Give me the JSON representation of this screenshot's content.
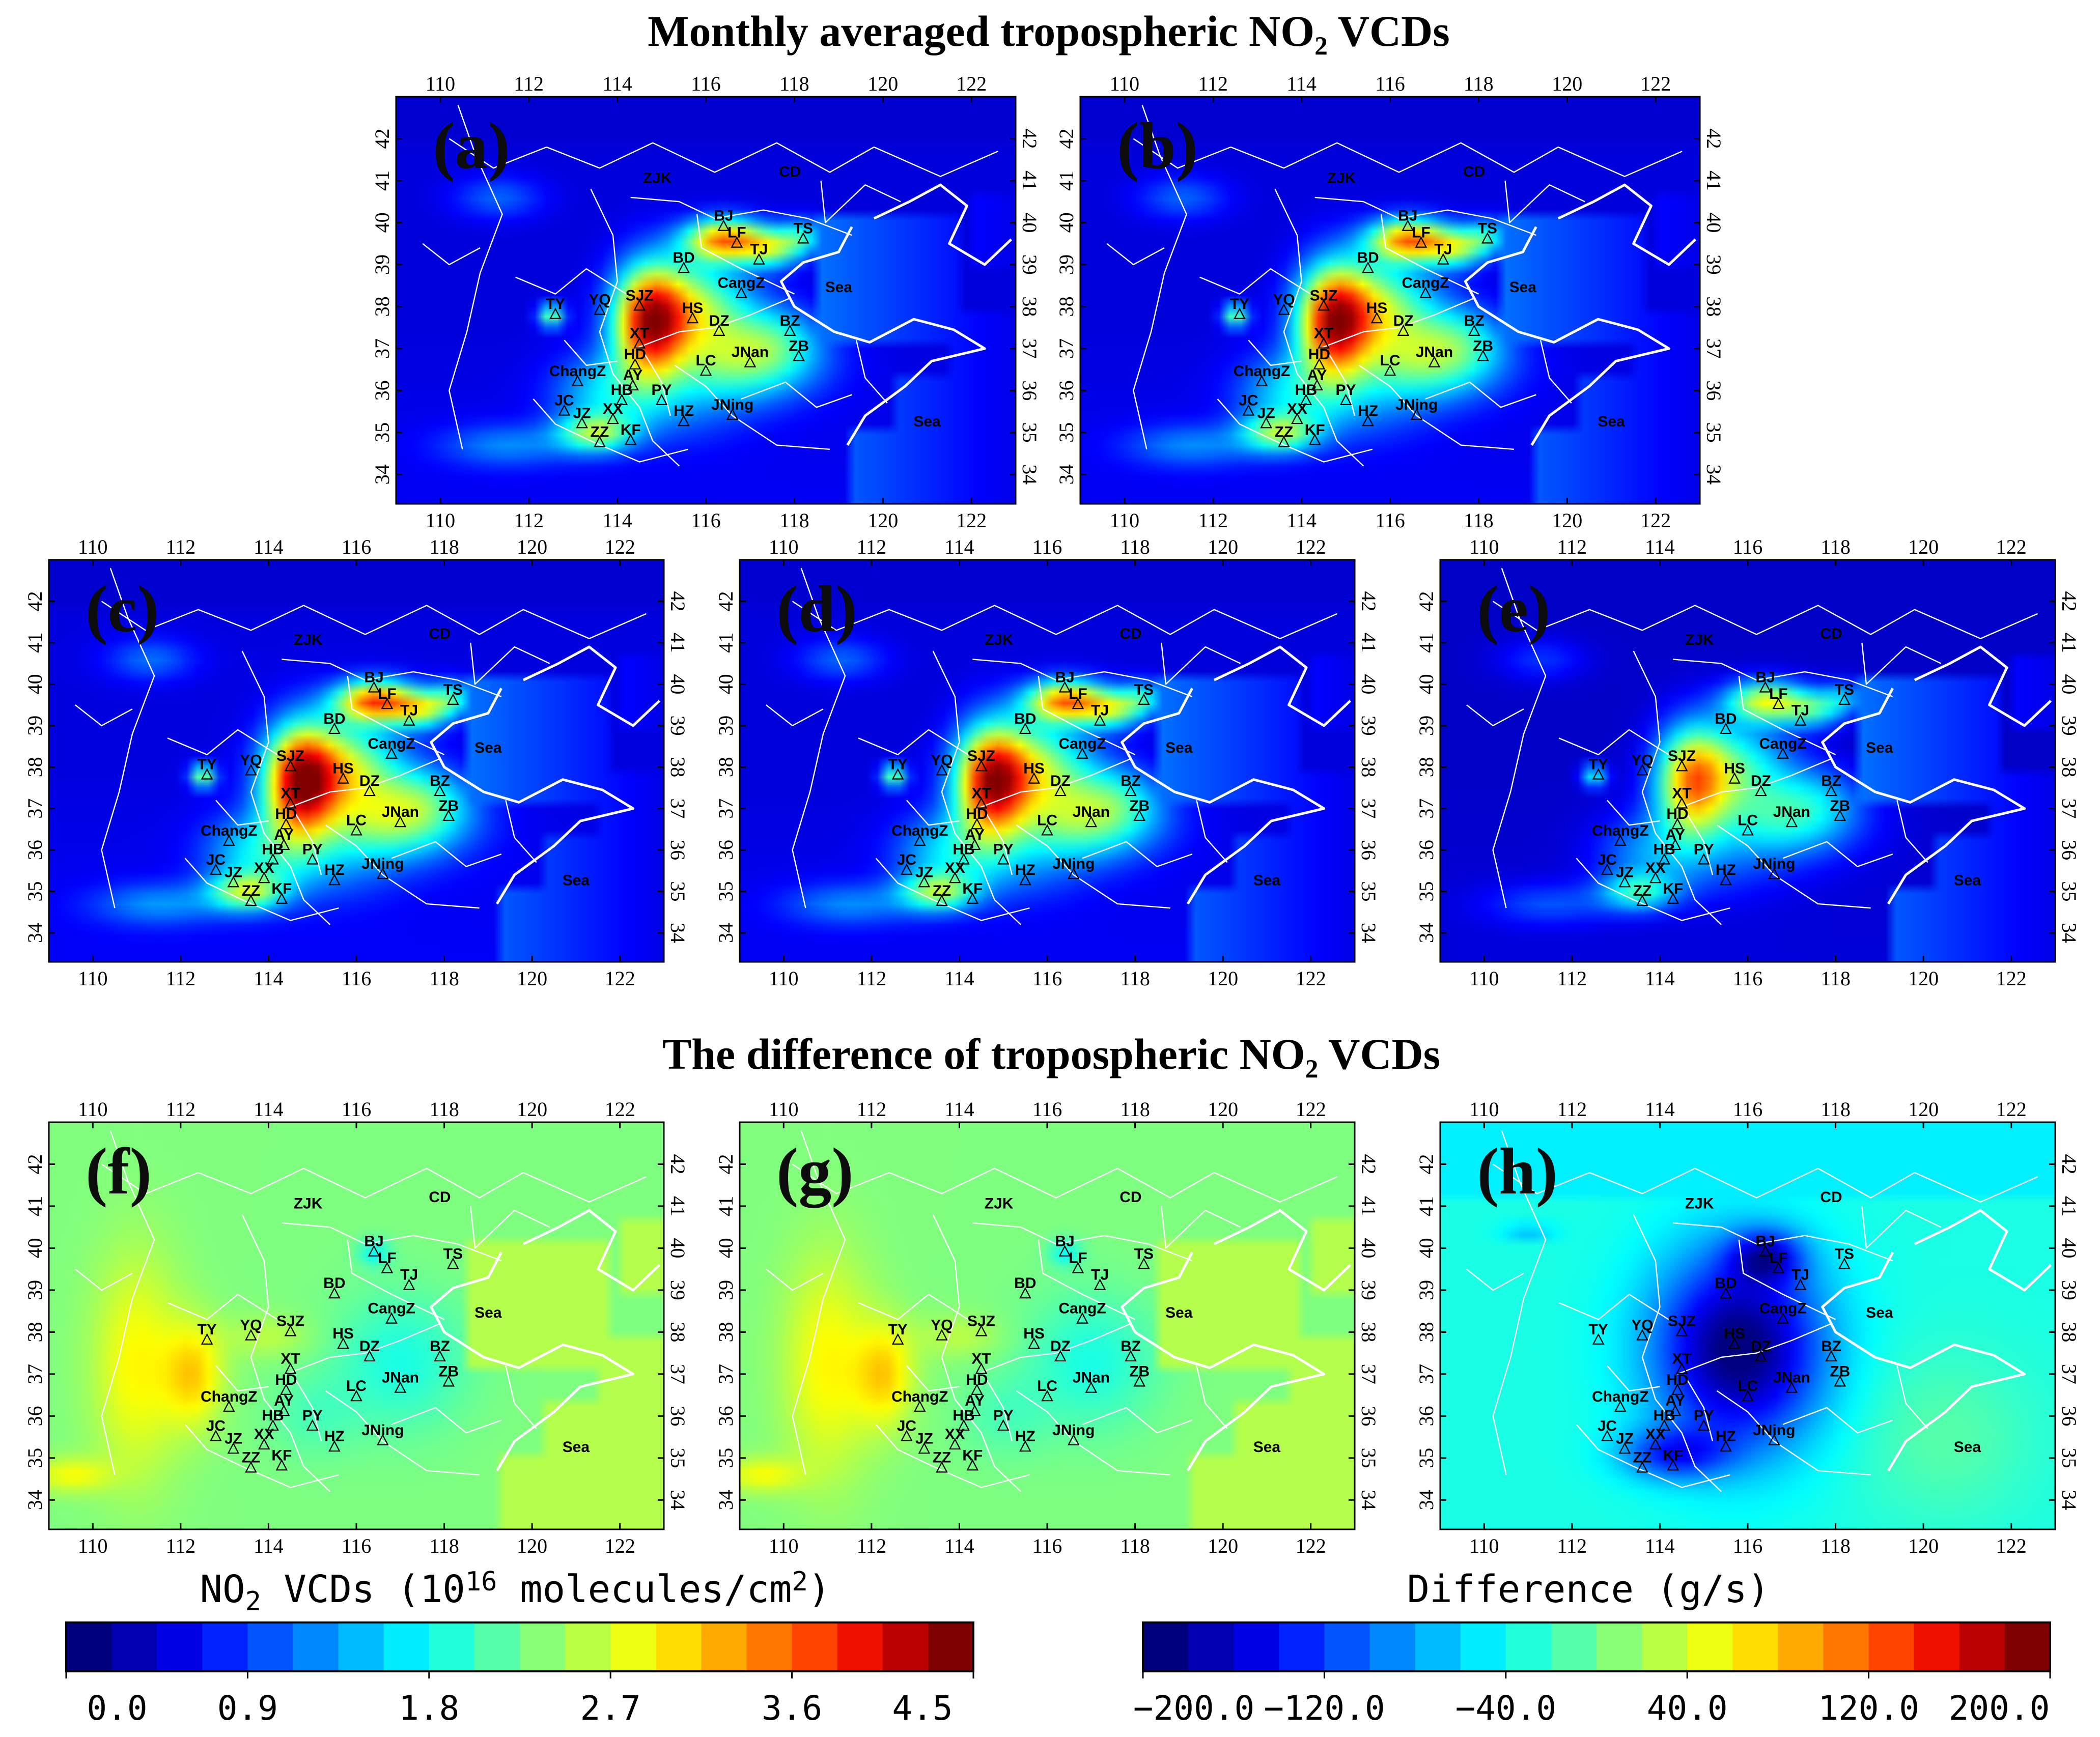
{
  "titles": {
    "top": "Monthly averaged tropospheric NO₂ VCDs",
    "bottom": "The difference of tropospheric NO₂ VCDs"
  },
  "axes": {
    "lon_ticks": [
      "110",
      "112",
      "114",
      "116",
      "118",
      "120",
      "122"
    ],
    "lat_ticks": [
      "34",
      "35",
      "36",
      "37",
      "38",
      "39",
      "40",
      "41",
      "42"
    ],
    "lon_range": [
      109,
      123
    ],
    "lat_range": [
      33.3,
      43
    ]
  },
  "panels": [
    {
      "label": "(a)",
      "mode": "vcd",
      "intensity": 1.0
    },
    {
      "label": "(b)",
      "mode": "vcd",
      "intensity": 1.0
    },
    {
      "label": "(c)",
      "mode": "vcd",
      "intensity": 1.05
    },
    {
      "label": "(d)",
      "mode": "vcd",
      "intensity": 1.0
    },
    {
      "label": "(e)",
      "mode": "vcd",
      "intensity": 0.78
    },
    {
      "label": "(f)",
      "mode": "diff_vcd"
    },
    {
      "label": "(g)",
      "mode": "diff_vcd"
    },
    {
      "label": "(h)",
      "mode": "diff_emis"
    }
  ],
  "cities": [
    {
      "name": "CD",
      "lon": 117.9,
      "lat": 40.95
    },
    {
      "name": "ZJK",
      "lon": 114.9,
      "lon_label": 114.9,
      "lat": 40.8
    },
    {
      "name": "BJ",
      "lon": 116.4,
      "lat": 39.9
    },
    {
      "name": "LF",
      "lon": 116.7,
      "lat": 39.5
    },
    {
      "name": "TS",
      "lon": 118.2,
      "lat": 39.6
    },
    {
      "name": "TJ",
      "lon": 117.2,
      "lat": 39.1
    },
    {
      "name": "BD",
      "lon": 115.5,
      "lat": 38.9
    },
    {
      "name": "SJZ",
      "lon": 114.5,
      "lat": 38.0
    },
    {
      "name": "HS",
      "lon": 115.7,
      "lat": 37.7
    },
    {
      "name": "CangZ",
      "lon": 116.8,
      "lat": 38.3
    },
    {
      "name": "TY",
      "lon": 112.6,
      "lat": 37.8
    },
    {
      "name": "YQ",
      "lon": 113.6,
      "lat": 37.9
    },
    {
      "name": "XT",
      "lon": 114.5,
      "lat": 37.1
    },
    {
      "name": "DZ",
      "lon": 116.3,
      "lat": 37.4
    },
    {
      "name": "BZ",
      "lon": 117.9,
      "lat": 37.4
    },
    {
      "name": "ChangZ",
      "lon": 113.1,
      "lat": 36.2
    },
    {
      "name": "HD",
      "lon": 114.4,
      "lat": 36.6
    },
    {
      "name": "LC",
      "lon": 116.0,
      "lat": 36.45
    },
    {
      "name": "JNan",
      "lon": 117.0,
      "lat": 36.65
    },
    {
      "name": "ZB",
      "lon": 118.1,
      "lat": 36.8
    },
    {
      "name": "AY",
      "lon": 114.35,
      "lat": 36.1
    },
    {
      "name": "JC",
      "lon": 112.8,
      "lat": 35.5
    },
    {
      "name": "HB",
      "lon": 114.1,
      "lat": 35.75
    },
    {
      "name": "PY",
      "lon": 115.0,
      "lat": 35.75
    },
    {
      "name": "XX",
      "lon": 113.9,
      "lat": 35.3
    },
    {
      "name": "JZ",
      "lon": 113.2,
      "lat": 35.2
    },
    {
      "name": "HZ",
      "lon": 115.5,
      "lat": 35.25
    },
    {
      "name": "JNing",
      "lon": 116.6,
      "lat": 35.4
    },
    {
      "name": "ZZ",
      "lon": 113.6,
      "lat": 34.75
    },
    {
      "name": "KF",
      "lon": 114.3,
      "lat": 34.8
    },
    {
      "name": "Sea",
      "lon": 119.0,
      "lat": 38.2,
      "marker": false
    },
    {
      "name": "Sea",
      "lon": 121.0,
      "lat": 35.0,
      "marker": false
    }
  ],
  "colorbars": [
    {
      "title_html": "NO<tspan baseline-shift=\"-30%\" font-size=\"52\">2</tspan> VCDs (10<tspan baseline-shift=\"45%\" font-size=\"52\">16</tspan> molecules/cm<tspan baseline-shift=\"45%\" font-size=\"52\">2</tspan>)",
      "title_text": "NO2 VCDs (10^16 molecules/cm^2)",
      "ticks": [
        "0.0",
        "0.9",
        "1.8",
        "2.7",
        "3.6",
        "4.5"
      ],
      "range": [
        0.0,
        4.5
      ]
    },
    {
      "title_text": "Difference (g/s)",
      "ticks": [
        "−200.0",
        "−120.0",
        "−40.0",
        "40.0",
        "120.0",
        "200.0"
      ],
      "range": [
        -200.0,
        200.0
      ]
    }
  ],
  "palette": [
    "#00007f",
    "#0000b2",
    "#0000e5",
    "#0022ff",
    "#0055ff",
    "#0088ff",
    "#00bbff",
    "#00eeff",
    "#22ffdd",
    "#55ffaa",
    "#88ff77",
    "#bbff44",
    "#eeff11",
    "#ffdd00",
    "#ffaa00",
    "#ff7700",
    "#ff4400",
    "#ee1100",
    "#bb0000",
    "#7f0000"
  ]
}
